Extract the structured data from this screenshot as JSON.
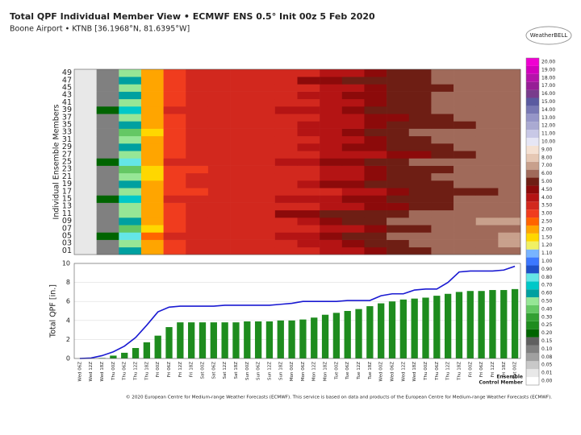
{
  "logo": "WeatherBELL",
  "footer": "© 2020 European Centre for Medium-range Weather Forecasts (ECMWF). This service is based on data and products of the European Centre for Medium-range Weather Forecasts (ECMWF).",
  "chart_data": [
    {
      "type": "heatmap",
      "title": "Total QPF Individual Member View • ECMWF ENS 0.5° Init 00z 5 Feb 2020",
      "subtitle": "Boone Airport • KTNB [36.1968°N, 81.6395°W]",
      "ylabel": "Individual Ensemble Members",
      "rows": [
        "01",
        "03",
        "05",
        "07",
        "09",
        "11",
        "13",
        "15",
        "17",
        "19",
        "21",
        "23",
        "25",
        "27",
        "29",
        "31",
        "33",
        "35",
        "37",
        "39",
        "41",
        "43",
        "45",
        "47",
        "49"
      ],
      "values": [
        [
          0.01,
          0.1,
          0.6,
          2.1,
          3.3,
          3.5,
          3.6,
          3.6,
          3.7,
          3.8,
          3.9,
          4.1,
          4.4,
          4.7,
          5.0,
          5.3,
          6.0,
          6.2,
          6.4,
          6.6
        ],
        [
          0.01,
          0.1,
          0.5,
          2.0,
          3.4,
          3.6,
          3.7,
          3.7,
          3.8,
          3.9,
          4.0,
          4.2,
          4.5,
          5.0,
          5.4,
          6.0,
          6.3,
          6.5,
          6.8,
          7.0
        ],
        [
          0.01,
          0.2,
          0.8,
          2.5,
          3.5,
          3.7,
          3.8,
          3.8,
          3.9,
          4.0,
          4.2,
          4.6,
          5.0,
          5.5,
          6.0,
          6.2,
          6.4,
          6.6,
          6.9,
          7.1
        ],
        [
          0.01,
          0.1,
          0.4,
          1.9,
          3.2,
          3.5,
          3.6,
          3.6,
          3.7,
          3.7,
          3.8,
          4.0,
          4.3,
          4.6,
          5.1,
          5.6,
          6.0,
          6.1,
          6.3,
          6.4
        ],
        [
          0.01,
          0.1,
          0.6,
          2.2,
          3.3,
          3.6,
          3.7,
          3.7,
          3.8,
          3.9,
          4.1,
          4.5,
          5.1,
          5.6,
          6.1,
          6.4,
          6.6,
          6.8,
          7.0,
          7.2
        ],
        [
          0.01,
          0.1,
          0.5,
          2.0,
          3.4,
          3.6,
          3.7,
          3.7,
          3.8,
          4.6,
          4.8,
          5.0,
          5.2,
          5.5,
          5.8,
          6.1,
          6.3,
          6.5,
          6.7,
          6.9
        ],
        [
          0.01,
          0.1,
          0.5,
          2.1,
          3.3,
          3.5,
          3.6,
          3.6,
          3.7,
          3.8,
          3.9,
          4.0,
          4.2,
          4.5,
          4.8,
          5.2,
          5.6,
          6.0,
          6.2,
          6.4
        ],
        [
          0.01,
          0.2,
          0.7,
          2.3,
          3.5,
          3.7,
          3.8,
          3.8,
          3.9,
          4.0,
          4.1,
          4.3,
          4.6,
          4.9,
          5.2,
          5.5,
          5.8,
          6.1,
          6.3,
          6.5
        ],
        [
          0.01,
          0.1,
          0.5,
          2.0,
          3.2,
          3.4,
          3.5,
          3.5,
          3.6,
          3.7,
          3.8,
          3.9,
          4.1,
          4.4,
          4.7,
          5.0,
          5.3,
          5.6,
          5.9,
          6.1
        ],
        [
          0.01,
          0.1,
          0.6,
          2.2,
          3.4,
          3.6,
          3.7,
          3.7,
          3.8,
          3.9,
          4.0,
          4.6,
          4.8,
          5.0,
          5.2,
          5.5,
          5.8,
          6.1,
          6.4,
          6.7
        ],
        [
          0.01,
          0.1,
          0.5,
          1.9,
          3.3,
          3.5,
          3.6,
          3.6,
          3.7,
          3.8,
          3.9,
          4.1,
          4.4,
          4.8,
          5.2,
          5.6,
          6.0,
          6.2,
          6.4,
          6.6
        ],
        [
          0.01,
          0.1,
          0.4,
          1.8,
          3.1,
          3.4,
          3.5,
          3.5,
          3.6,
          3.7,
          3.8,
          4.0,
          4.3,
          4.7,
          5.1,
          5.5,
          5.9,
          6.1,
          6.3,
          6.5
        ],
        [
          0.01,
          0.2,
          0.8,
          2.4,
          3.5,
          3.7,
          3.8,
          3.8,
          3.9,
          4.0,
          4.1,
          4.6,
          4.9,
          5.3,
          5.7,
          6.0,
          6.2,
          6.4,
          6.6,
          6.8
        ],
        [
          0.01,
          0.1,
          0.5,
          2.0,
          3.3,
          3.5,
          3.6,
          3.6,
          3.7,
          3.8,
          3.9,
          4.0,
          4.1,
          4.3,
          4.6,
          4.9,
          5.2,
          5.6,
          6.0,
          6.2
        ],
        [
          0.01,
          0.1,
          0.6,
          2.1,
          3.4,
          3.6,
          3.7,
          3.7,
          3.8,
          3.9,
          4.0,
          4.2,
          4.5,
          4.8,
          5.1,
          5.4,
          5.7,
          6.0,
          6.3,
          6.5
        ],
        [
          0.01,
          0.1,
          0.5,
          2.0,
          3.2,
          3.5,
          3.6,
          3.6,
          3.7,
          3.8,
          3.9,
          4.1,
          4.4,
          4.8,
          5.3,
          5.8,
          6.1,
          6.3,
          6.5,
          6.7
        ],
        [
          0.01,
          0.1,
          0.4,
          1.9,
          3.3,
          3.5,
          3.6,
          3.6,
          3.7,
          3.8,
          4.0,
          4.3,
          4.7,
          5.2,
          5.7,
          6.0,
          6.2,
          6.4,
          6.6,
          6.8
        ],
        [
          0.01,
          0.1,
          0.6,
          2.2,
          3.4,
          3.6,
          3.7,
          3.7,
          3.8,
          3.9,
          4.0,
          4.2,
          4.4,
          4.7,
          5.0,
          5.3,
          5.6,
          5.9,
          6.2,
          6.4
        ],
        [
          0.01,
          0.1,
          0.5,
          2.0,
          3.3,
          3.5,
          3.6,
          3.6,
          3.7,
          3.8,
          3.9,
          4.0,
          4.3,
          4.6,
          4.9,
          5.3,
          5.7,
          6.1,
          6.3,
          6.5
        ],
        [
          0.01,
          0.2,
          0.7,
          2.3,
          3.5,
          3.7,
          3.8,
          3.8,
          3.9,
          4.0,
          4.1,
          4.3,
          4.6,
          5.0,
          5.4,
          5.8,
          6.1,
          6.3,
          6.5,
          6.7
        ],
        [
          0.01,
          0.1,
          0.5,
          2.1,
          3.3,
          3.5,
          3.6,
          3.6,
          3.7,
          3.8,
          3.9,
          4.1,
          4.4,
          4.8,
          5.2,
          5.6,
          6.0,
          6.2,
          6.4,
          6.6
        ],
        [
          0.01,
          0.1,
          0.6,
          2.2,
          3.4,
          3.6,
          3.7,
          3.7,
          3.8,
          3.9,
          4.0,
          4.2,
          4.5,
          4.9,
          5.3,
          5.7,
          6.1,
          6.3,
          6.5,
          6.7
        ],
        [
          0.01,
          0.1,
          0.5,
          2.0,
          3.3,
          3.5,
          3.6,
          3.6,
          3.7,
          3.8,
          3.9,
          4.1,
          4.4,
          4.7,
          5.1,
          5.5,
          5.9,
          6.1,
          6.3,
          6.5
        ],
        [
          0.01,
          0.1,
          0.6,
          2.1,
          3.4,
          3.6,
          3.7,
          3.7,
          3.8,
          3.9,
          4.6,
          4.8,
          5.0,
          5.3,
          5.6,
          5.9,
          6.2,
          6.4,
          6.6,
          6.8
        ],
        [
          0.01,
          0.1,
          0.5,
          2.0,
          3.3,
          3.5,
          3.6,
          3.6,
          3.7,
          3.8,
          3.9,
          4.1,
          4.4,
          4.8,
          5.2,
          5.6,
          6.0,
          6.2,
          6.4,
          6.6
        ]
      ],
      "colorbar": {
        "levels": [
          {
            "value": 0,
            "label": "0.00"
          },
          {
            "value": 0.01,
            "label": "0.01"
          },
          {
            "value": 0.05,
            "label": "0.05"
          },
          {
            "value": 0.08,
            "label": "0.08"
          },
          {
            "value": 0.1,
            "label": "0.10"
          },
          {
            "value": 0.15,
            "label": "0.15"
          },
          {
            "value": 0.2,
            "label": "0.20"
          },
          {
            "value": 0.25,
            "label": "0.25"
          },
          {
            "value": 0.3,
            "label": "0.30"
          },
          {
            "value": 0.4,
            "label": "0.40"
          },
          {
            "value": 0.5,
            "label": "0.50"
          },
          {
            "value": 0.6,
            "label": "0.60"
          },
          {
            "value": 0.7,
            "label": "0.70"
          },
          {
            "value": 0.8,
            "label": "0.80"
          },
          {
            "value": 0.9,
            "label": "0.90"
          },
          {
            "value": 1,
            "label": "1.00"
          },
          {
            "value": 1.1,
            "label": "1.10"
          },
          {
            "value": 1.2,
            "label": "1.20"
          },
          {
            "value": 1.5,
            "label": "1.50"
          },
          {
            "value": 2,
            "label": "2.00"
          },
          {
            "value": 2.5,
            "label": "2.50"
          },
          {
            "value": 3,
            "label": "3.00"
          },
          {
            "value": 3.5,
            "label": "3.50"
          },
          {
            "value": 4,
            "label": "4.00"
          },
          {
            "value": 4.5,
            "label": "4.50"
          },
          {
            "value": 5,
            "label": "5.00"
          },
          {
            "value": 6,
            "label": "6.00"
          },
          {
            "value": 7,
            "label": "7.00"
          },
          {
            "value": 8,
            "label": "8.00"
          },
          {
            "value": 9,
            "label": "9.00"
          },
          {
            "value": 10,
            "label": "10.00"
          },
          {
            "value": 11,
            "label": "11.00"
          },
          {
            "value": 12,
            "label": "12.00"
          },
          {
            "value": 13,
            "label": "13.00"
          },
          {
            "value": 14,
            "label": "14.00"
          },
          {
            "value": 15,
            "label": "15.00"
          },
          {
            "value": 16,
            "label": "16.00"
          },
          {
            "value": 17,
            "label": "17.00"
          },
          {
            "value": 18,
            "label": "18.00"
          },
          {
            "value": 19,
            "label": "19.00"
          },
          {
            "value": 20,
            "label": "20.00"
          }
        ],
        "colors": [
          "#ffffff",
          "#e8e8e8",
          "#c8c8c8",
          "#a0a0a0",
          "#808080",
          "#606060",
          "#006400",
          "#1e8c1e",
          "#32a032",
          "#64c864",
          "#96e696",
          "#00a0a0",
          "#00c8c8",
          "#64e6e6",
          "#1e50c8",
          "#3c78ff",
          "#78b4ff",
          "#f0f064",
          "#ffd700",
          "#ffa500",
          "#ff6400",
          "#f03c1e",
          "#d2281e",
          "#b41414",
          "#8c0a0a",
          "#6e1e14",
          "#a06a5a",
          "#c8a08c",
          "#e6c8b4",
          "#f5e1d2",
          "#e6e6f5",
          "#c8c8e6",
          "#aaaad2",
          "#9696c8",
          "#7878b4",
          "#5a5aa0",
          "#783c8c",
          "#961e96",
          "#b414aa",
          "#d200be",
          "#f000d2"
        ]
      }
    },
    {
      "type": "bar_line",
      "ylabel": "Total QPF [in.]",
      "ylim": [
        0,
        10
      ],
      "yticks": [
        0,
        2,
        4,
        6,
        8,
        10
      ],
      "grid": true,
      "categories": [
        "Wed 06Z",
        "Wed 12Z",
        "Wed 18Z",
        "Thu 00Z",
        "Thu 06Z",
        "Thu 12Z",
        "Thu 18Z",
        "Fri 00Z",
        "Fri 06Z",
        "Fri 12Z",
        "Fri 18Z",
        "Sat 00Z",
        "Sat 06Z",
        "Sat 12Z",
        "Sat 18Z",
        "Sun 00Z",
        "Sun 06Z",
        "Sun 12Z",
        "Sun 18Z",
        "Mon 00Z",
        "Mon 06Z",
        "Mon 12Z",
        "Mon 18Z",
        "Tue 00Z",
        "Tue 06Z",
        "Tue 12Z",
        "Tue 18Z",
        "Wed 00Z",
        "Wed 06Z",
        "Wed 12Z",
        "Wed 18Z",
        "Thu 00Z",
        "Thu 06Z",
        "Thu 12Z",
        "Thu 18Z",
        "Fri 00Z",
        "Fri 06Z",
        "Fri 12Z",
        "Fri 18Z",
        "Sat 00Z"
      ],
      "series": [
        {
          "name": "Ensemble",
          "color": "#1e8c1e",
          "kind": "bar",
          "values": [
            0,
            0,
            0.05,
            0.3,
            0.6,
            1.1,
            1.7,
            2.4,
            3.3,
            3.8,
            3.8,
            3.8,
            3.8,
            3.8,
            3.8,
            3.9,
            3.9,
            3.9,
            4.0,
            4.0,
            4.1,
            4.3,
            4.6,
            4.8,
            5.0,
            5.2,
            5.5,
            5.8,
            6.0,
            6.2,
            6.3,
            6.4,
            6.6,
            6.8,
            7.0,
            7.1,
            7.1,
            7.2,
            7.2,
            7.3
          ]
        },
        {
          "name": "Control Member",
          "color": "#1a1ad2",
          "kind": "line",
          "values": [
            0,
            0.05,
            0.3,
            0.7,
            1.3,
            2.2,
            3.5,
            4.9,
            5.4,
            5.5,
            5.5,
            5.5,
            5.5,
            5.6,
            5.6,
            5.6,
            5.6,
            5.6,
            5.7,
            5.8,
            6.0,
            6.0,
            6.0,
            6.0,
            6.1,
            6.1,
            6.1,
            6.6,
            6.8,
            6.8,
            7.2,
            7.3,
            7.3,
            8.0,
            9.1,
            9.2,
            9.2,
            9.2,
            9.3,
            9.7
          ]
        }
      ]
    }
  ]
}
